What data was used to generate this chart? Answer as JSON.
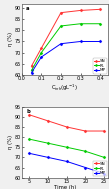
{
  "top": {
    "xlabel": "C$_{inh}$(gL$^{-1}$)",
    "ylabel": "η (%)",
    "panel_label": "a",
    "xlim": [
      0.0,
      0.44
    ],
    "ylim": [
      60,
      92
    ],
    "yticks": [
      60,
      65,
      70,
      75,
      80,
      85,
      90
    ],
    "xticks": [
      0.0,
      0.1,
      0.2,
      0.3,
      0.4
    ],
    "series": [
      {
        "label": "SN",
        "color": "#ff3333",
        "x": [
          0.05,
          0.1,
          0.2,
          0.3,
          0.4
        ],
        "y": [
          64,
          72,
          88,
          89,
          89.5
        ]
      },
      {
        "label": "PL",
        "color": "#00cc00",
        "x": [
          0.05,
          0.1,
          0.2,
          0.3,
          0.4
        ],
        "y": [
          62,
          70,
          82,
          83,
          83
        ]
      },
      {
        "label": "MP",
        "color": "#0000ff",
        "x": [
          0.05,
          0.1,
          0.2,
          0.3,
          0.4
        ],
        "y": [
          61,
          68,
          74,
          75,
          75
        ]
      }
    ]
  },
  "bottom": {
    "xlabel": "Time (h)",
    "ylabel": "η (%)",
    "panel_label": "b",
    "xlim": [
      3,
      26
    ],
    "ylim": [
      60,
      95
    ],
    "yticks": [
      60,
      65,
      70,
      75,
      80,
      85,
      90,
      95
    ],
    "xticks": [
      5,
      10,
      15,
      20,
      25
    ],
    "series": [
      {
        "label": "SN",
        "color": "#ff3333",
        "x": [
          5,
          10,
          15,
          20,
          25
        ],
        "y": [
          91,
          88,
          85,
          83,
          83
        ]
      },
      {
        "label": "PL",
        "color": "#00cc00",
        "x": [
          5,
          10,
          15,
          20,
          25
        ],
        "y": [
          79,
          77,
          75,
          73,
          70
        ]
      },
      {
        "label": "MP",
        "color": "#0000ff",
        "x": [
          5,
          10,
          15,
          20,
          25
        ],
        "y": [
          72,
          70,
          68,
          65,
          62
        ]
      }
    ]
  },
  "bg_color": "#f0f0f0",
  "plot_bg": "#ffffff",
  "marker": "D",
  "marker_size": 1.5,
  "linewidth": 0.7,
  "fontsize": 3.8,
  "legend_fontsize": 3.0,
  "tick_fontsize": 3.5
}
